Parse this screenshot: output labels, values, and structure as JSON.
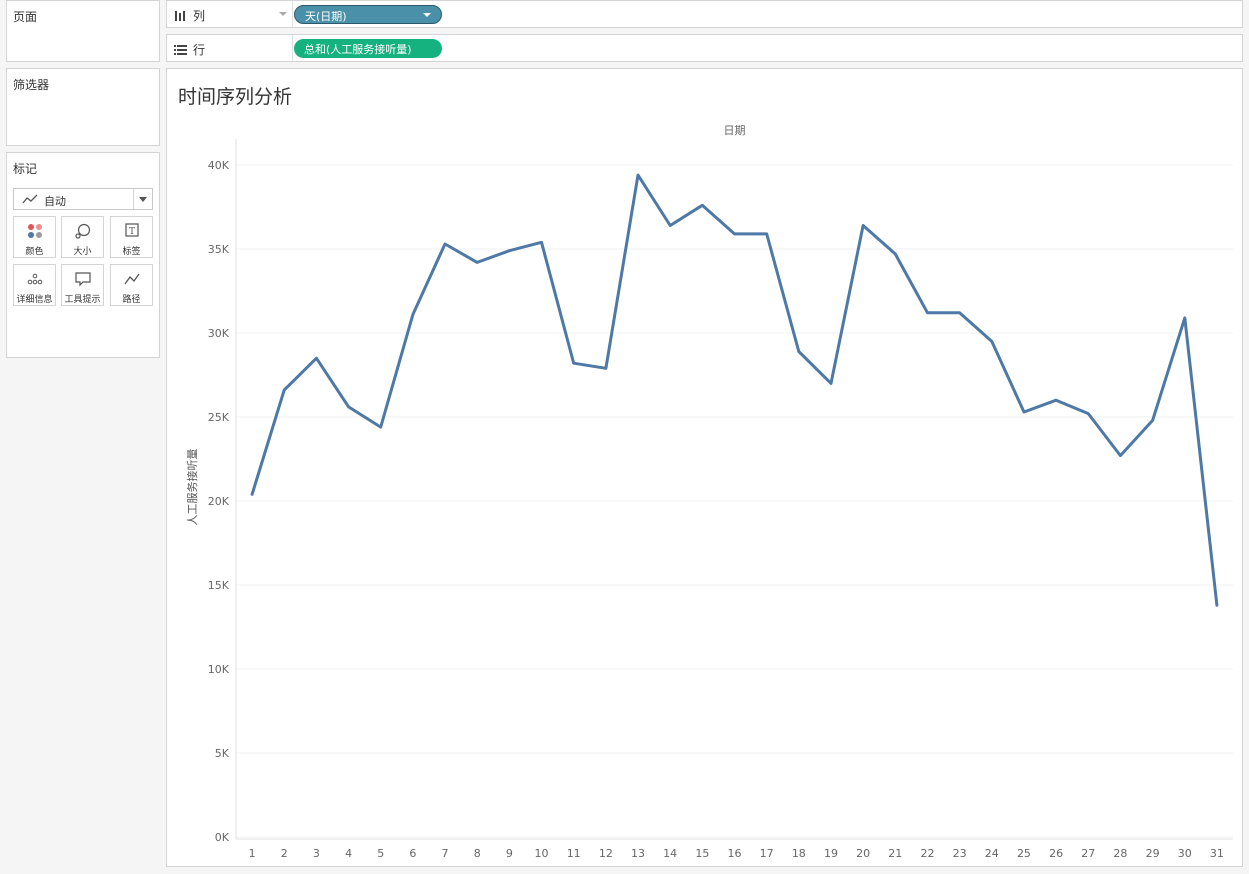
{
  "panels": {
    "pages_title": "页面",
    "filters_title": "筛选器",
    "marks_title": "标记",
    "mark_type": "自动",
    "mark_buttons": {
      "color": "颜色",
      "size": "大小",
      "label": "标签",
      "detail": "详细信息",
      "tooltip": "工具提示",
      "path": "路径"
    }
  },
  "shelves": {
    "columns_label": "列",
    "columns_pill": "天(日期)",
    "rows_label": "行",
    "rows_pill": "总和(人工服务接听量)"
  },
  "colors": {
    "line": "#4e79a7",
    "dimension_pill": "#4a90a8",
    "measure_pill": "#15b17f"
  },
  "chart_data": {
    "type": "line",
    "title": "时间序列分析",
    "xlabel": "日期",
    "ylabel": "人工服务接听量",
    "x": [
      1,
      2,
      3,
      4,
      5,
      6,
      7,
      8,
      9,
      10,
      11,
      12,
      13,
      14,
      15,
      16,
      17,
      18,
      19,
      20,
      21,
      22,
      23,
      24,
      25,
      26,
      27,
      28,
      29,
      30,
      31
    ],
    "values": [
      20400,
      26600,
      28500,
      25600,
      24400,
      31100,
      35300,
      34200,
      34900,
      35400,
      28200,
      27900,
      39400,
      36400,
      37600,
      35900,
      35900,
      28900,
      27000,
      36400,
      34700,
      31200,
      31200,
      29500,
      25300,
      26000,
      25200,
      22700,
      24800,
      30900,
      13800
    ],
    "ylim": [
      0,
      40000
    ],
    "y_ticks": [
      "0K",
      "5K",
      "10K",
      "15K",
      "20K",
      "25K",
      "30K",
      "35K",
      "40K"
    ],
    "y_tick_values": [
      0,
      5000,
      10000,
      15000,
      20000,
      25000,
      30000,
      35000,
      40000
    ],
    "grid": true,
    "legend": "none"
  }
}
